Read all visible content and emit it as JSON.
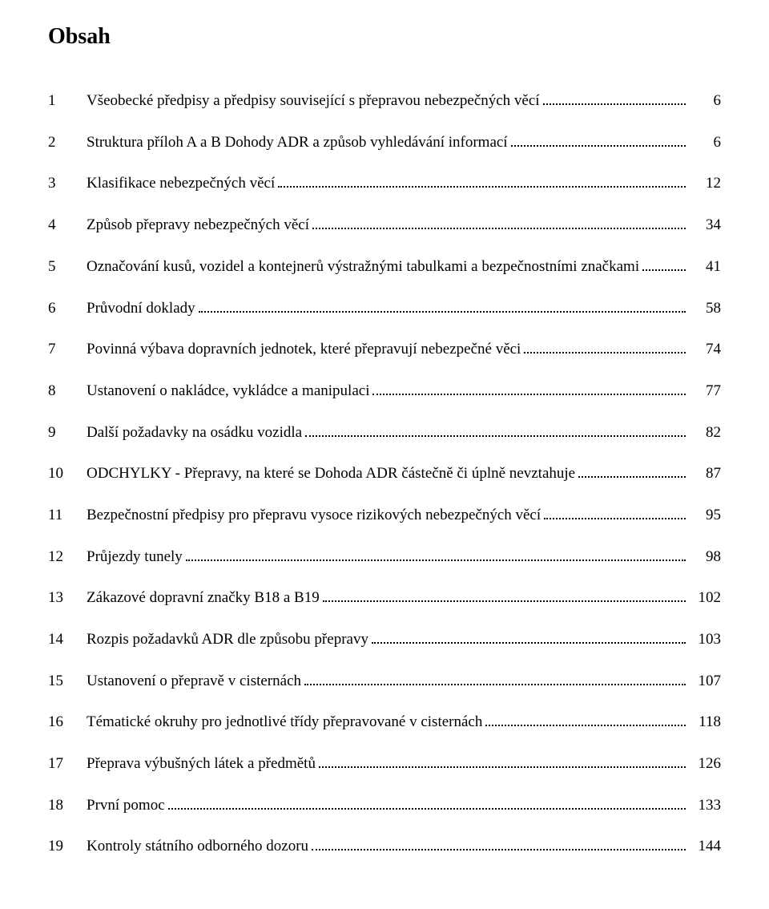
{
  "title": "Obsah",
  "font": {
    "family": "Times New Roman",
    "title_size_pt": 21,
    "body_size_pt": 14
  },
  "colors": {
    "text": "#000000",
    "background": "#ffffff",
    "leader": "#000000"
  },
  "toc": [
    {
      "num": "1",
      "label": "Všeobecké předpisy a předpisy související s přepravou nebezpečných věcí",
      "page": "6"
    },
    {
      "num": "2",
      "label": "Struktura příloh A a B Dohody ADR a způsob vyhledávání informací",
      "page": "6"
    },
    {
      "num": "3",
      "label": "Klasifikace nebezpečných věcí",
      "page": "12"
    },
    {
      "num": "4",
      "label": "Způsob přepravy nebezpečných věcí",
      "page": "34"
    },
    {
      "num": "5",
      "label": "Označování kusů, vozidel a kontejnerů výstražnými tabulkami a bezpečnostními značkami",
      "page": "41"
    },
    {
      "num": "6",
      "label": "Průvodní doklady",
      "page": "58"
    },
    {
      "num": "7",
      "label": "Povinná výbava dopravních jednotek, které přepravují nebezpečné věci",
      "page": "74"
    },
    {
      "num": "8",
      "label": "Ustanovení o nakládce, vykládce a manipulaci",
      "page": "77"
    },
    {
      "num": "9",
      "label": "Další požadavky na osádku vozidla",
      "page": "82"
    },
    {
      "num": "10",
      "label": "ODCHYLKY - Přepravy, na které se Dohoda ADR částečně či úplně nevztahuje",
      "page": "87"
    },
    {
      "num": "11",
      "label": "Bezpečnostní předpisy pro přepravu vysoce rizikových nebezpečných věcí",
      "page": "95"
    },
    {
      "num": "12",
      "label": "Průjezdy tunely",
      "page": "98"
    },
    {
      "num": "13",
      "label": "Zákazové dopravní značky B18 a B19",
      "page": "102"
    },
    {
      "num": "14",
      "label": "Rozpis požadavků ADR dle způsobu přepravy",
      "page": "103"
    },
    {
      "num": "15",
      "label": "Ustanovení o přepravě v cisternách",
      "page": "107"
    },
    {
      "num": "16",
      "label": "Tématické okruhy pro jednotlivé třídy přepravované v cisternách",
      "page": "118"
    },
    {
      "num": "17",
      "label": "Přeprava výbušných látek a předmětů",
      "page": "126"
    },
    {
      "num": "18",
      "label": "První pomoc",
      "page": "133"
    },
    {
      "num": "19",
      "label": "Kontroly státního odborného dozoru",
      "page": "144"
    }
  ]
}
